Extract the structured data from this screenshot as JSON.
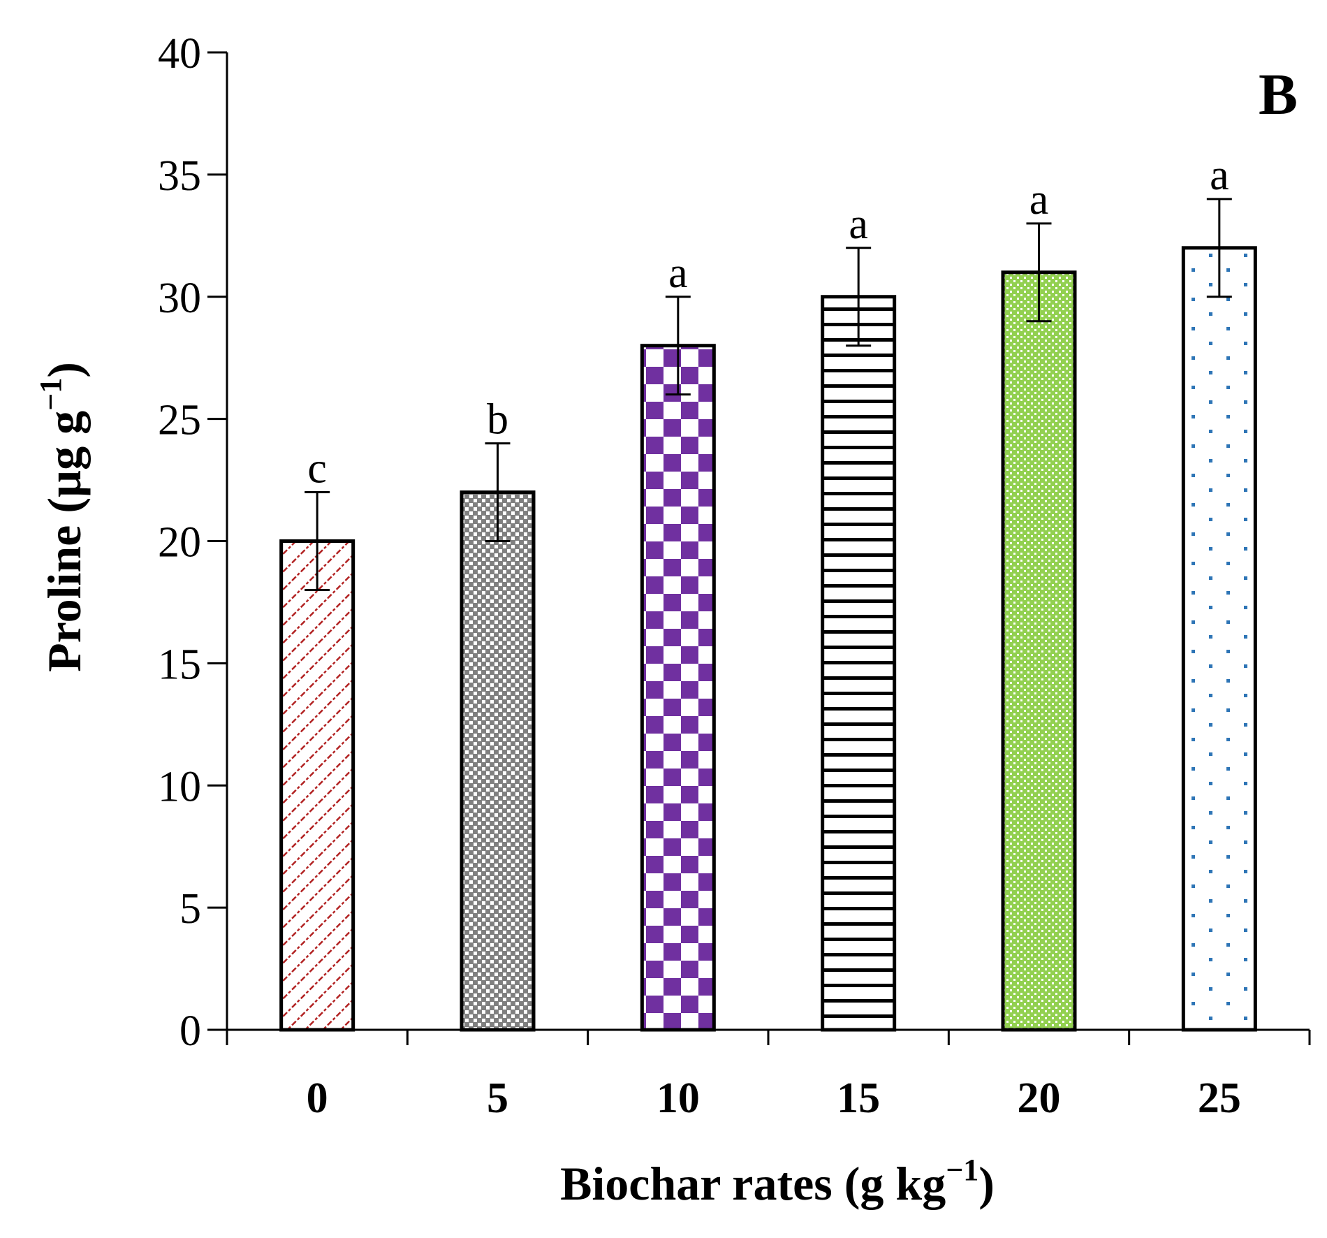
{
  "chart_data": {
    "type": "bar",
    "panel_label": "B",
    "categories": [
      "0",
      "5",
      "10",
      "15",
      "20",
      "25"
    ],
    "values": [
      20,
      22,
      28,
      30,
      31,
      32
    ],
    "error": [
      2,
      2,
      2,
      2,
      2,
      2
    ],
    "significance": [
      "c",
      "b",
      "a",
      "a",
      "a",
      "a"
    ],
    "xlabel": {
      "main": "Biochar rates (g kg",
      "sup": "−1",
      "close": ")"
    },
    "ylabel": {
      "main": "Proline (µg g",
      "sup": "−1",
      "close": ")"
    },
    "ylim": [
      0,
      40
    ],
    "yticks": [
      "0",
      "5",
      "10",
      "15",
      "20",
      "25",
      "30",
      "35",
      "40"
    ],
    "grid": false,
    "legend": "none",
    "bar_colors": [
      "#b22222",
      "#808080",
      "#7030a0",
      "#000000",
      "#92d050",
      "#2e75b6"
    ],
    "bar_patterns": [
      "diagonal-dots",
      "fine-check",
      "checkerboard",
      "horizontal-lines",
      "dotted-grid",
      "sparse-dots"
    ]
  }
}
